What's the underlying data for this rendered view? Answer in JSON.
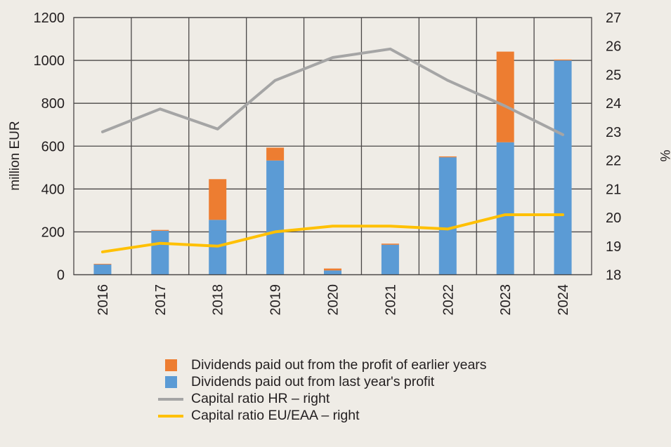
{
  "chart_data": {
    "type": "bar",
    "subtype": "stacked bar with line overlay on secondary axis",
    "categories": [
      "2016",
      "2017",
      "2018",
      "2019",
      "2020",
      "2021",
      "2022",
      "2023",
      "2024"
    ],
    "series": [
      {
        "name": "Dividends paid out from last year's profit",
        "type": "bar",
        "axis": "left",
        "color": "#5b9bd5",
        "values": [
          48,
          205,
          256,
          533,
          20,
          140,
          548,
          618,
          1000
        ]
      },
      {
        "name": "Dividends paid out from the profit of earlier years",
        "type": "bar",
        "axis": "left",
        "color": "#ed7d31",
        "values": [
          3,
          4,
          190,
          60,
          9,
          5,
          4,
          423,
          4
        ]
      },
      {
        "name": "Capital ratio HR – right",
        "type": "line",
        "axis": "right",
        "color": "#a5a5a5",
        "values": [
          23.0,
          23.8,
          23.1,
          24.8,
          25.6,
          25.9,
          24.8,
          23.9,
          22.9
        ]
      },
      {
        "name": "Capital ratio EU/EAA – right",
        "type": "line",
        "axis": "right",
        "color": "#ffc000",
        "values": [
          18.8,
          19.1,
          19.0,
          19.5,
          19.7,
          19.7,
          19.6,
          20.1,
          20.1
        ]
      }
    ],
    "title": "",
    "xlabel": "",
    "ylabel": "million EUR",
    "y2label": "%",
    "ylim": [
      0,
      1200
    ],
    "y2lim": [
      18,
      27
    ],
    "yticks": [
      "0",
      "200",
      "400",
      "600",
      "800",
      "1000",
      "1200"
    ],
    "y2ticks": [
      "18",
      "19",
      "20",
      "21",
      "22",
      "23",
      "24",
      "25",
      "26",
      "27"
    ],
    "grid": true,
    "legend_position": "bottom"
  },
  "legend": [
    {
      "label": "Dividends paid out from the profit of earlier years",
      "kind": "square",
      "color": "#ed7d31"
    },
    {
      "label": "Dividends paid out from last year's profit",
      "kind": "square",
      "color": "#5b9bd5"
    },
    {
      "label": "Capital ratio HR – right",
      "kind": "line",
      "color": "#a5a5a5"
    },
    {
      "label": "Capital ratio EU/EAA – right",
      "kind": "line",
      "color": "#ffc000"
    }
  ]
}
